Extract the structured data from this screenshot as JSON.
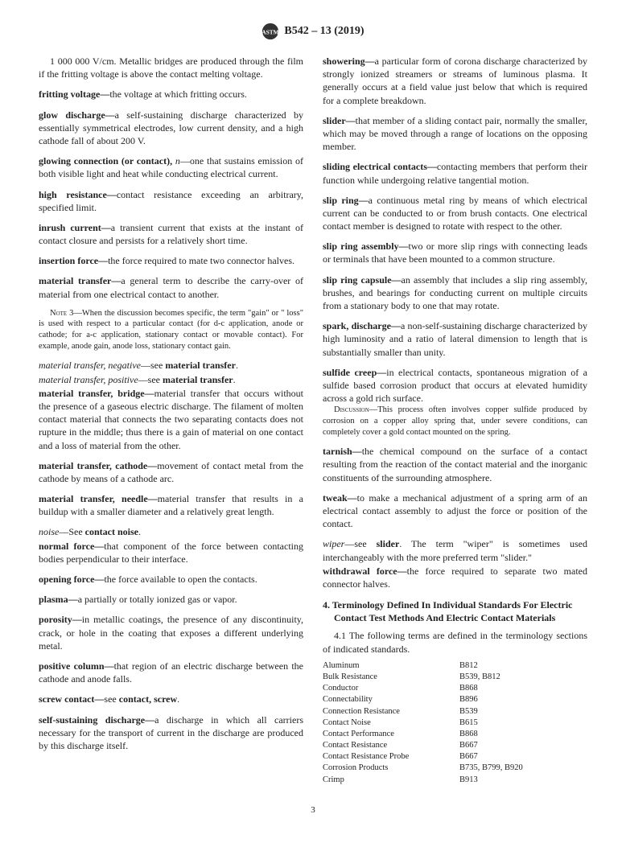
{
  "header": {
    "standard": "B542 – 13 (2019)"
  },
  "left": {
    "cont1": "1 000 000 V/cm. Metallic bridges are produced through the film if the fritting voltage is above the contact melting voltage.",
    "e1_term": "fritting voltage—",
    "e1_def": "the voltage at which fritting occurs.",
    "e2_term": "glow discharge—",
    "e2_def": "a self-sustaining discharge characterized by essentially symmetrical electrodes, low current density, and a high cathode fall of about 200 V.",
    "e3_term": "glowing connection (or contact),",
    "e3_n": " n",
    "e3_def": "—one that sustains emission of both visible light and heat while conducting electrical current.",
    "e4_term": "high resistance—",
    "e4_def": "contact resistance exceeding an arbitrary, specified limit.",
    "e5_term": "inrush current—",
    "e5_def": "a transient current that exists at the instant of contact closure and persists for a relatively short time.",
    "e6_term": "insertion force—",
    "e6_def": "the force required to mate two connector halves.",
    "e7_term": "material transfer—",
    "e7_def": "a general term to describe the carry-over of material from one electrical contact to another.",
    "note3_label": "Note 3—",
    "note3": "When the discussion becomes specific, the term \"gain\" or \" loss\" is used with respect to a particular contact (for d-c application, anode or cathode; for a-c application, stationary contact or movable contact). For example, anode gain, anode loss, stationary contact gain.",
    "e8_term": "material transfer, negative",
    "e8_def": "—see ",
    "e8_ref": "material transfer",
    "e9_term": "material transfer, positive",
    "e9_def": "—see ",
    "e9_ref": "material transfer",
    "e10_term": "material transfer, bridge—",
    "e10_def": "material transfer that occurs without the presence of a gaseous electric discharge. The filament of molten contact material that connects the two separating contacts does not rupture in the middle; thus there is a gain of material on one contact and a loss of material from the other.",
    "e11_term": "material transfer, cathode—",
    "e11_def": "movement of contact metal from the cathode by means of a cathode arc.",
    "e12_term": "material transfer, needle—",
    "e12_def": "material transfer that results in a buildup with a smaller diameter and a relatively great length.",
    "e13_term": "noise",
    "e13_def": "—See ",
    "e13_ref": "contact noise",
    "e14_term": "normal force—",
    "e14_def": "that component of the force between contacting bodies perpendicular to their interface.",
    "e15_term": "opening force—",
    "e15_def": "the force available to open the contacts.",
    "e16_term": "plasma—",
    "e16_def": "a partially or totally ionized gas or vapor.",
    "e17_term": "porosity—",
    "e17_def": "in metallic coatings, the presence of any discontinuity, crack, or hole in the coating that exposes a different underlying metal.",
    "e18_term": "positive column—",
    "e18_def": "that region of an electric discharge between the cathode and anode falls.",
    "e19_term": "screw contact—",
    "e19_def": "see ",
    "e19_ref": "contact, screw",
    "e20_term": "self-sustaining discharge—",
    "e20_def": "a discharge in which all carriers necessary for the transport of current in the discharge are produced by this discharge itself."
  },
  "right": {
    "e1_term": "showering—",
    "e1_def": "a particular form of corona discharge characterized by strongly ionized streamers or streams of luminous plasma. It generally occurs at a field value just below that which is required for a complete breakdown.",
    "e2_term": "slider—",
    "e2_def": "that member of a sliding contact pair, normally the smaller, which may be moved through a range of locations on the opposing member.",
    "e3_term": "sliding electrical contacts—",
    "e3_def": "contacting members that perform their function while undergoing relative tangential motion.",
    "e4_term": "slip ring—",
    "e4_def": "a continuous metal ring by means of which electrical current can be conducted to or from brush contacts. One electrical contact member is designed to rotate with respect to the other.",
    "e5_term": "slip ring assembly—",
    "e5_def": "two or more slip rings with connecting leads or terminals that have been mounted to a common structure.",
    "e6_term": "slip ring capsule—",
    "e6_def": "an assembly that includes a slip ring assembly, brushes, and bearings for conducting current on multiple circuits from a stationary body to one that may rotate.",
    "e7_term": "spark, discharge—",
    "e7_def": "a non-self-sustaining discharge characterized by high luminosity and a ratio of lateral dimension to length that is substantially smaller than unity.",
    "e8_term": "sulfide creep—",
    "e8_def": "in electrical contacts, spontaneous migration of a sulfide based corrosion product that occurs at elevated humidity across a gold rich surface.",
    "disc_label": "Discussion—",
    "disc": "This process often involves copper sulfide produced by corrosion on a copper alloy spring that, under severe conditions, can completely cover a gold contact mounted on the spring.",
    "e9_term": "tarnish—",
    "e9_def": "the chemical compound on the surface of a contact resulting from the reaction of the contact material and the inorganic constituents of the surrounding atmosphere.",
    "e10_term": "tweak—",
    "e10_def": "to make a mechanical adjustment of a spring arm of an electrical contact assembly to adjust the force or position of the contact.",
    "e11_term": "wiper",
    "e11_def": "—see ",
    "e11_ref": "slider",
    "e11_rest": ". The term \"wiper\" is sometimes used interchangeably with the more preferred term \"slider.\"",
    "e12_term": "withdrawal force—",
    "e12_def": "the force required to separate two mated connector halves.",
    "section4": "4. Terminology Defined In Individual Standards For Electric Contact Test Methods And Electric Contact Materials",
    "para41": "4.1 The following terms are defined in the terminology sections of indicated standards.",
    "table": [
      [
        "Aluminum",
        "B812"
      ],
      [
        "Bulk Resistance",
        "B539, B812"
      ],
      [
        "Conductor",
        "B868"
      ],
      [
        "Connectability",
        "B896"
      ],
      [
        "Connection Resistance",
        "B539"
      ],
      [
        "Contact Noise",
        "B615"
      ],
      [
        "Contact Performance",
        "B868"
      ],
      [
        "Contact Resistance",
        "B667"
      ],
      [
        "Contact Resistance Probe",
        "B667"
      ],
      [
        "Corrosion Products",
        "B735, B799, B920"
      ],
      [
        "Crimp",
        "B913"
      ]
    ]
  },
  "pagenum": "3"
}
